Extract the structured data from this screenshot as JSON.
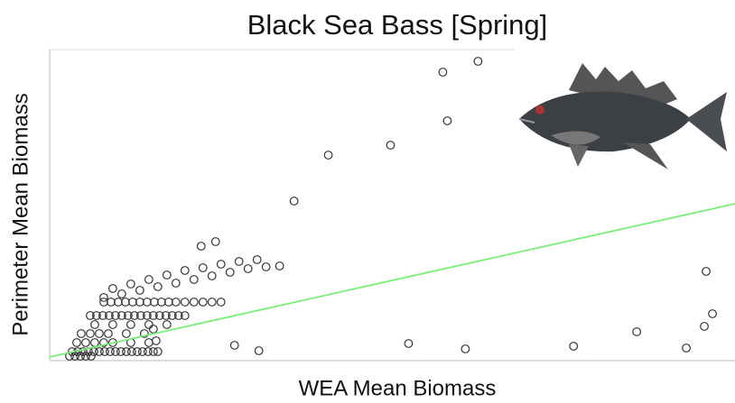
{
  "chart_data": {
    "type": "scatter",
    "title": "Black Sea Bass [Spring]",
    "x_label": "WEA Mean Biomass",
    "y_label": "Perimeter Mean Biomass",
    "xlim": [
      0,
      760
    ],
    "ylim": [
      0,
      345
    ],
    "marker_color": "#333333",
    "x": [
      436,
      475,
      441,
      378,
      309,
      271,
      168,
      184,
      205,
      232,
      398,
      461,
      581,
      651,
      706,
      726,
      735,
      728,
      25,
      31,
      37,
      43,
      49,
      55,
      61,
      67,
      73,
      79,
      85,
      91,
      97,
      103,
      109,
      115,
      120,
      45,
      52,
      59,
      66,
      73,
      80,
      87,
      94,
      101,
      108,
      115,
      122,
      129,
      136,
      143,
      150,
      60,
      68,
      76,
      84,
      92,
      100,
      108,
      116,
      124,
      132,
      140,
      150,
      160,
      170,
      180,
      190,
      60,
      80,
      100,
      120,
      140,
      160,
      180,
      200,
      220,
      240,
      255,
      70,
      90,
      110,
      130,
      150,
      170,
      190,
      210,
      230,
      30,
      40,
      50,
      60,
      70,
      90,
      110,
      35,
      45,
      55,
      65,
      85,
      105,
      50,
      70,
      90,
      110,
      130,
      22,
      28,
      34,
      40,
      46,
      115,
      118
    ],
    "values": [
      320,
      332,
      266,
      239,
      228,
      177,
      127,
      132,
      17,
      11,
      19,
      13,
      16,
      32,
      14,
      38,
      52,
      99,
      10,
      10,
      10,
      10,
      10,
      10,
      10,
      10,
      10,
      10,
      10,
      10,
      10,
      10,
      10,
      10,
      10,
      50,
      50,
      50,
      50,
      50,
      50,
      50,
      50,
      50,
      50,
      50,
      50,
      50,
      50,
      50,
      50,
      65,
      65,
      65,
      65,
      65,
      65,
      65,
      65,
      65,
      65,
      65,
      65,
      65,
      65,
      65,
      65,
      70,
      74,
      78,
      82,
      86,
      90,
      94,
      98,
      102,
      104,
      105,
      80,
      85,
      90,
      95,
      100,
      103,
      107,
      110,
      112,
      20,
      20,
      20,
      20,
      20,
      20,
      20,
      30,
      30,
      30,
      30,
      30,
      30,
      40,
      40,
      40,
      40,
      40,
      5,
      5,
      5,
      5,
      5,
      35,
      22
    ],
    "fit": {
      "x": [
        0,
        760
      ],
      "values": [
        4,
        174
      ],
      "color": "#77ee77"
    }
  }
}
